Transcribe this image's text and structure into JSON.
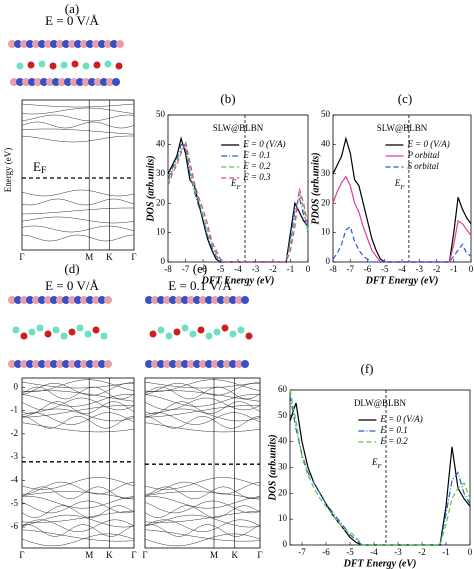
{
  "band_structures": [
    {
      "label": "(a)",
      "field": "E = 0 V/Å",
      "y_label": "Energy (eV)",
      "fermi_label": {
        "text": "E",
        "sub": "F"
      },
      "kpoints": [
        "Γ",
        "M",
        "K",
        "Γ"
      ]
    },
    {
      "label": "(d)",
      "field": "E = 0 V/Å",
      "kpoints": [
        "Γ",
        "M",
        "K",
        "Γ"
      ],
      "ylim": [
        -6.9,
        0.4
      ],
      "yticks": [
        0,
        -1,
        -2,
        -3,
        -4,
        -5,
        -6
      ],
      "fermi": -3.2
    },
    {
      "label": "(e)",
      "field": "E = 0.1 V/Å",
      "kpoints": [
        "Γ",
        "M",
        "K",
        "Γ"
      ],
      "ylim": [
        -6.9,
        0.4
      ],
      "fermi": -3.3
    }
  ],
  "chart_data": [
    {
      "type": "line",
      "label": "(b)",
      "title": "SLW@BLBN",
      "x_label": "DFT Energy (eV)",
      "y_label": "DOS (arb.units)",
      "x": [
        -8,
        -7.75,
        -7.5,
        -7.25,
        -7,
        -6.75,
        -6.5,
        -6.25,
        -6,
        -5.75,
        -5.5,
        -5.25,
        -5,
        -4.75,
        -4.5,
        -4.25,
        -4,
        -3.75,
        -3.5,
        -3.25,
        -3,
        -2.75,
        -2.5,
        -2.25,
        -2,
        -1.75,
        -1.5,
        -1.25,
        -1,
        -0.75,
        -0.5,
        -0.25,
        0
      ],
      "xlim": [
        -8,
        0
      ],
      "ylim": [
        0,
        50
      ],
      "xticks": [
        -8,
        -7,
        -6,
        -5,
        -4,
        -3,
        -2,
        -1,
        0
      ],
      "yticks": [
        0,
        10,
        20,
        30,
        40,
        50
      ],
      "fermi": -3.6,
      "fermi_label": {
        "text": "E",
        "sub": "F"
      },
      "series": [
        {
          "name": "E = 0 (V/A)",
          "color": "#000000",
          "dash": "",
          "values": [
            30,
            33,
            36,
            42,
            37,
            28,
            26,
            20,
            14,
            8,
            4,
            1,
            0,
            0,
            0,
            0,
            0,
            0,
            0,
            0,
            0,
            0,
            0,
            0,
            0,
            0,
            0,
            0,
            10,
            20,
            17,
            14,
            12
          ]
        },
        {
          "name": "E = 0.1",
          "color": "#2a5bd7",
          "dash": "6 2 1 2",
          "values": [
            28,
            32,
            35,
            40,
            39,
            30,
            24,
            19,
            15,
            9,
            5,
            2,
            0,
            0,
            0,
            0,
            0,
            0,
            0,
            0,
            0,
            0,
            0,
            0,
            0,
            0,
            0,
            0,
            8,
            18,
            22,
            16,
            10
          ]
        },
        {
          "name": "E = 0.2",
          "color": "#5ccc2c",
          "dash": "5 3",
          "values": [
            27,
            31,
            34,
            38,
            40,
            32,
            25,
            21,
            16,
            11,
            6,
            3,
            1,
            0,
            0,
            0,
            0,
            0,
            0,
            0,
            0,
            0,
            0,
            0,
            0,
            0,
            0,
            0,
            6,
            15,
            24,
            18,
            11
          ]
        },
        {
          "name": "E = 0.3",
          "color": "#e0409a",
          "dash": "5 3",
          "values": [
            26,
            30,
            33,
            37,
            41,
            34,
            27,
            22,
            18,
            13,
            7,
            4,
            1,
            0,
            0,
            0,
            0,
            0,
            0,
            0,
            0,
            0,
            0,
            0,
            0,
            0,
            0,
            0,
            4,
            12,
            25,
            20,
            12
          ]
        }
      ]
    },
    {
      "type": "line",
      "label": "(c)",
      "title": "SLW@BLBN",
      "x_label": "DFT Energy (eV)",
      "y_label": "PDOS (arb.units)",
      "x": [
        -8,
        -7.75,
        -7.5,
        -7.25,
        -7,
        -6.75,
        -6.5,
        -6.25,
        -6,
        -5.75,
        -5.5,
        -5.25,
        -5,
        -4.75,
        -4.5,
        -4.25,
        -4,
        -3.75,
        -3.5,
        -3.25,
        -3,
        -2.75,
        -2.5,
        -2.25,
        -2,
        -1.75,
        -1.5,
        -1.25,
        -1,
        -0.75,
        -0.5,
        -0.25,
        0
      ],
      "xlim": [
        -8,
        0
      ],
      "ylim": [
        0,
        50
      ],
      "xticks": [
        -8,
        -7,
        -6,
        -5,
        -4,
        -3,
        -2,
        -1,
        0
      ],
      "yticks": [
        0,
        10,
        20,
        30,
        40,
        50
      ],
      "fermi": -3.6,
      "fermi_label": {
        "text": "E",
        "sub": "F"
      },
      "series": [
        {
          "name": "E = 0 (V/A)",
          "color": "#000000",
          "dash": "",
          "values": [
            30,
            33,
            36,
            42,
            37,
            28,
            26,
            20,
            14,
            8,
            4,
            1,
            0,
            0,
            0,
            0,
            0,
            0,
            0,
            0,
            0,
            0,
            0,
            0,
            0,
            0,
            0,
            0,
            10,
            22,
            18,
            15,
            13
          ]
        },
        {
          "name": "P orbital",
          "color": "#e0409a",
          "dash": "",
          "values": [
            20,
            24,
            27,
            29,
            26,
            20,
            17,
            12,
            8,
            4,
            2,
            0,
            0,
            0,
            0,
            0,
            0,
            0,
            0,
            0,
            0,
            0,
            0,
            0,
            0,
            0,
            0,
            0,
            6,
            14,
            13,
            11,
            9
          ]
        },
        {
          "name": "S orbital",
          "color": "#2a5bd7",
          "dash": "5 3",
          "values": [
            1,
            3,
            6,
            11,
            12,
            7,
            4,
            2,
            1,
            0,
            0,
            0,
            0,
            0,
            0,
            0,
            0,
            0,
            0,
            0,
            0,
            0,
            0,
            0,
            0,
            0,
            0,
            0,
            2,
            4,
            6,
            3,
            2
          ]
        }
      ]
    },
    {
      "type": "line",
      "label": "(f)",
      "title": "DLW@BLBN",
      "x_label": "DFT Energy (eV)",
      "y_label": "DOS (arb.units)",
      "x": [
        -7.5,
        -7.25,
        -7,
        -6.75,
        -6.5,
        -6.25,
        -6,
        -5.75,
        -5.5,
        -5.25,
        -5,
        -4.75,
        -4.5,
        -4.25,
        -4,
        -3.75,
        -3.5,
        -3.25,
        -3,
        -2.75,
        -2.5,
        -2.25,
        -2,
        -1.75,
        -1.5,
        -1.25,
        -1,
        -0.75,
        -0.5,
        -0.25,
        0
      ],
      "xlim": [
        -7.5,
        0
      ],
      "ylim": [
        0,
        60
      ],
      "xticks": [
        -7,
        -6,
        -5,
        -4,
        -3,
        -2,
        -1,
        0
      ],
      "yticks": [
        0,
        10,
        20,
        30,
        40,
        50,
        60
      ],
      "fermi": -3.5,
      "fermi_label": {
        "text": "E",
        "sub": "F"
      },
      "series": [
        {
          "name": "E = 0 (V/A)",
          "color": "#000000",
          "dash": "",
          "values": [
            48,
            55,
            40,
            30,
            24,
            20,
            16,
            12,
            9,
            6,
            3,
            1,
            0,
            0,
            0,
            0,
            0,
            0,
            0,
            0,
            0,
            0,
            0,
            0,
            0,
            0,
            15,
            38,
            22,
            18,
            15
          ]
        },
        {
          "name": "E = 0.1",
          "color": "#2a5bd7",
          "dash": "6 2 1 2",
          "values": [
            58,
            45,
            35,
            28,
            24,
            20,
            16,
            13,
            10,
            7,
            4,
            2,
            0,
            0,
            0,
            0,
            0,
            0,
            0,
            0,
            0,
            0,
            0,
            0,
            0,
            0,
            12,
            25,
            28,
            20,
            16
          ]
        },
        {
          "name": "E = 0.2",
          "color": "#5ccc2c",
          "dash": "5 3",
          "values": [
            60,
            48,
            34,
            27,
            22,
            18,
            15,
            12,
            9,
            6,
            5,
            3,
            0,
            0,
            0,
            0,
            0,
            0,
            0,
            0,
            0,
            0,
            0,
            0,
            0,
            0,
            8,
            18,
            22,
            24,
            18
          ]
        }
      ]
    }
  ]
}
